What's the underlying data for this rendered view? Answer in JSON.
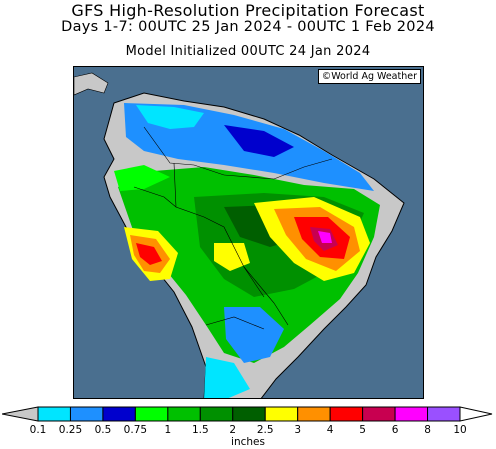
{
  "header": {
    "title": "GFS High-Resolution Precipitation Forecast",
    "subtitle": "Days 1-7: 00UTC 25 Jan 2024 - 00UTC 1 Feb 2024",
    "model_line": "Model Initialized 00UTC 24 Jan 2024"
  },
  "map": {
    "credit": "©World Ag Weather",
    "ocean_color": "#4a6f8f",
    "land_nodata_color": "#c8c8c8"
  },
  "legend": {
    "units": "inches",
    "ticks": [
      "0.1",
      "0.25",
      "0.5",
      "0.75",
      "1",
      "1.5",
      "2",
      "2.5",
      "3",
      "4",
      "5",
      "6",
      "8",
      "10"
    ],
    "colors": [
      "#00e5ff",
      "#1e90ff",
      "#0000cd",
      "#00ff00",
      "#00c000",
      "#009000",
      "#005f00",
      "#ffff00",
      "#ff9000",
      "#ff0000",
      "#c80050",
      "#ff00ff",
      "#9a50ff"
    ],
    "low_end_color": "#c8c8c8"
  }
}
